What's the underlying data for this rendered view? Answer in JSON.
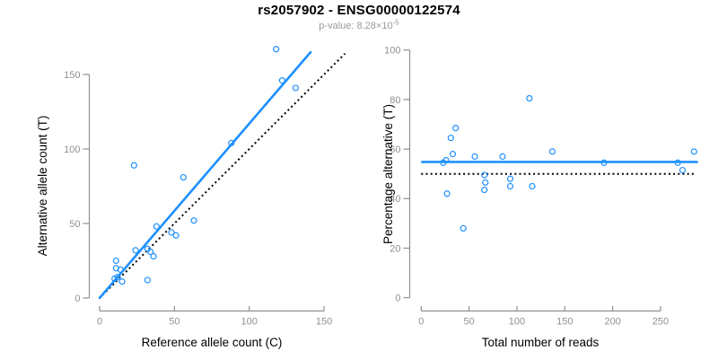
{
  "header": {
    "title": "rs2057902 - ENSG00000122574",
    "subtitle_prefix": "p-value: 8.28×10",
    "subtitle_exponent": "-5"
  },
  "colors": {
    "accent_blue": "#1E90FF",
    "axis_gray": "#8f8f8f",
    "tick_label_gray": "#8f8f8f",
    "reference_line_black": "#000000",
    "title_black": "#000000",
    "subtitle_gray": "#9a9a9a"
  },
  "chart_data": [
    {
      "type": "scatter",
      "panel": "left",
      "xlabel": "Reference allele count (C)",
      "ylabel": "Alternative allele count (T)",
      "x_ticks": [
        0,
        50,
        100,
        150
      ],
      "y_ticks": [
        0,
        50,
        100,
        150
      ],
      "xlim": [
        0,
        165
      ],
      "ylim": [
        0,
        168
      ],
      "grid": false,
      "points": [
        [
          10,
          13
        ],
        [
          12,
          14
        ],
        [
          15,
          11
        ],
        [
          11,
          20
        ],
        [
          14,
          19
        ],
        [
          11,
          25
        ],
        [
          32,
          12
        ],
        [
          24,
          32
        ],
        [
          32,
          33
        ],
        [
          34,
          31
        ],
        [
          36,
          28
        ],
        [
          38,
          48
        ],
        [
          48,
          44
        ],
        [
          51,
          42
        ],
        [
          23,
          89
        ],
        [
          63,
          52
        ],
        [
          56,
          81
        ],
        [
          88,
          104
        ],
        [
          122,
          146
        ],
        [
          131,
          141
        ],
        [
          118,
          167
        ]
      ],
      "lines": [
        {
          "name": "identity-line",
          "style": "dotted-black",
          "x1": 2,
          "y1": 2,
          "x2": 164,
          "y2": 164
        },
        {
          "name": "regression-line",
          "style": "solid-blue",
          "x1": 0,
          "y1": 0,
          "x2": 141,
          "y2": 165
        }
      ]
    },
    {
      "type": "scatter",
      "panel": "right",
      "xlabel": "Total number of reads",
      "ylabel": "Percentage alternative (T)",
      "x_ticks": [
        0,
        50,
        100,
        150,
        200,
        250
      ],
      "y_ticks": [
        0,
        20,
        40,
        60,
        80,
        100
      ],
      "xlim": [
        0,
        290
      ],
      "ylim": [
        0,
        100
      ],
      "grid": false,
      "points": [
        [
          23,
          54.5
        ],
        [
          26,
          55.5
        ],
        [
          27,
          42
        ],
        [
          31,
          64.5
        ],
        [
          33,
          58
        ],
        [
          36,
          68.5
        ],
        [
          44,
          28
        ],
        [
          56,
          57
        ],
        [
          66,
          49.5
        ],
        [
          67,
          46.5
        ],
        [
          66,
          43.5
        ],
        [
          85,
          57
        ],
        [
          93,
          48
        ],
        [
          93,
          45
        ],
        [
          113,
          80.5
        ],
        [
          116,
          45
        ],
        [
          137,
          59
        ],
        [
          191,
          54.5
        ],
        [
          268,
          54.5
        ],
        [
          273,
          51.5
        ],
        [
          285,
          59
        ]
      ],
      "lines": [
        {
          "name": "null-line-50pct",
          "style": "dotted-black",
          "x1": 0,
          "y1": 50,
          "x2": 285,
          "y2": 50
        },
        {
          "name": "mean-line",
          "style": "solid-blue",
          "x1": 1,
          "y1": 54.8,
          "x2": 288,
          "y2": 54.8
        }
      ]
    }
  ]
}
